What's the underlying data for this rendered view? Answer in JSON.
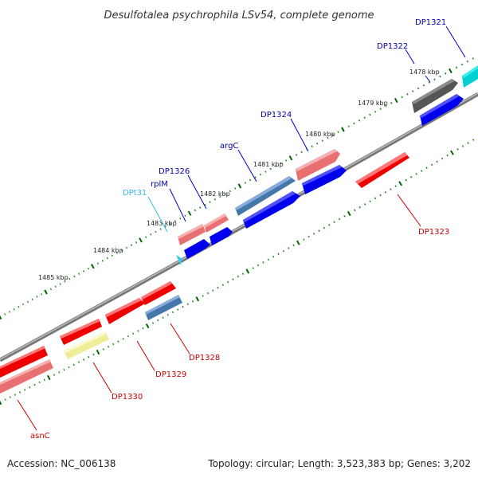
{
  "title": "Desulfotalea psychrophila LSv54, complete genome",
  "footer": {
    "accession": "Accession: NC_006138",
    "topology": "Topology: circular; Length: 3,523,383 bp; Genes: 3,202"
  },
  "ticks": [
    "1478 kbp",
    "1479 kbp",
    "1480 kbp",
    "1481 kbp",
    "1482 kbp",
    "1483 kbp",
    "1484 kbp",
    "1485 kbp"
  ],
  "genes": [
    {
      "name": "DP1321",
      "color": "#00cccc",
      "label_color": "#0000aa"
    },
    {
      "name": "DP1322",
      "color": "#555555",
      "label_color": "#0000aa"
    },
    {
      "name": "DP1323",
      "color": "#ee0000",
      "label_color": "#cc0000"
    },
    {
      "name": "DP1324",
      "color": "#0000ee",
      "label_color": "#0000aa"
    },
    {
      "name": "argC",
      "color": "#4477aa",
      "label_color": "#0000aa"
    },
    {
      "name": "DP1326",
      "color": "#e87070",
      "label_color": "#0000aa"
    },
    {
      "name": "rplM",
      "color": "#e87070",
      "label_color": "#0000aa"
    },
    {
      "name": "DPt31",
      "color": "#33ccee",
      "label_color": "#33bbee"
    },
    {
      "name": "DP1328",
      "color": "#4477aa",
      "label_color": "#cc0000"
    },
    {
      "name": "DP1329",
      "color": "#ee0000",
      "label_color": "#cc0000"
    },
    {
      "name": "DP1330",
      "color": "#eeee99",
      "label_color": "#cc0000"
    },
    {
      "name": "asnC",
      "color": "#e87070",
      "label_color": "#cc0000"
    }
  ],
  "colors": {
    "backbone": "#808080",
    "tick_major": "#006600",
    "tick_minor": "#228822"
  }
}
